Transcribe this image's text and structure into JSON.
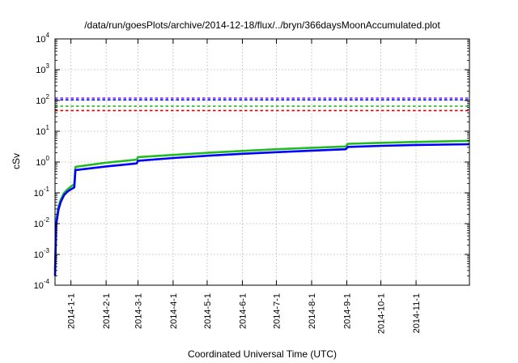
{
  "chart_data": {
    "type": "line",
    "title": "/data/run/goesPlots/archive/2014-12-18/flux/../bryn/366daysMoonAccumulated.plot",
    "xlabel": "Coordinated Universal Time (UTC)",
    "ylabel": "cSv",
    "y_scale": "log",
    "ylim": [
      0.0001,
      10000
    ],
    "xlim": [
      "2013-12-18",
      "2014-12-18"
    ],
    "grid": true,
    "y_ticks": [
      {
        "value": 0.0001,
        "base": "10",
        "exp": "-4"
      },
      {
        "value": 0.001,
        "base": "10",
        "exp": "-3"
      },
      {
        "value": 0.01,
        "base": "10",
        "exp": "-2"
      },
      {
        "value": 0.1,
        "base": "10",
        "exp": "-1"
      },
      {
        "value": 1,
        "base": "10",
        "exp": "0"
      },
      {
        "value": 10,
        "base": "10",
        "exp": "1"
      },
      {
        "value": 100,
        "base": "10",
        "exp": "2"
      },
      {
        "value": 1000,
        "base": "10",
        "exp": "3"
      },
      {
        "value": 10000,
        "base": "10",
        "exp": "4"
      }
    ],
    "x_ticks": [
      {
        "date": "2014-01-01",
        "label": "2014-1-1"
      },
      {
        "date": "2014-02-01",
        "label": "2014-2-1"
      },
      {
        "date": "2014-03-01",
        "label": "2014-3-1"
      },
      {
        "date": "2014-04-01",
        "label": "2014-4-1"
      },
      {
        "date": "2014-05-01",
        "label": "2014-5-1"
      },
      {
        "date": "2014-06-01",
        "label": "2014-6-1"
      },
      {
        "date": "2014-07-01",
        "label": "2014-7-1"
      },
      {
        "date": "2014-08-01",
        "label": "2014-8-1"
      },
      {
        "date": "2014-09-01",
        "label": "2014-9-1"
      },
      {
        "date": "2014-10-01",
        "label": "2014-10-1"
      },
      {
        "date": "2014-11-01",
        "label": "2014-11-1"
      }
    ],
    "thresholds": [
      {
        "value": 120,
        "color": "#8a2be2"
      },
      {
        "value": 105,
        "color": "#0000ff"
      },
      {
        "value": 65,
        "color": "#22bb22"
      },
      {
        "value": 47,
        "color": "#dd0000"
      }
    ],
    "series": [
      {
        "color": "#22bb22",
        "points": [
          [
            "2013-12-18",
            0.0003
          ],
          [
            "2013-12-19",
            0.012
          ],
          [
            "2013-12-21",
            0.035
          ],
          [
            "2013-12-23",
            0.06
          ],
          [
            "2013-12-26",
            0.1
          ],
          [
            "2013-12-29",
            0.13
          ],
          [
            "2014-01-01",
            0.16
          ],
          [
            "2014-01-04",
            0.19
          ],
          [
            "2014-01-05",
            0.7
          ],
          [
            "2014-02-01",
            0.95
          ],
          [
            "2014-02-28",
            1.2
          ],
          [
            "2014-03-01",
            1.45
          ],
          [
            "2014-04-01",
            1.7
          ],
          [
            "2014-05-01",
            2.0
          ],
          [
            "2014-06-01",
            2.3
          ],
          [
            "2014-07-01",
            2.6
          ],
          [
            "2014-08-01",
            2.9
          ],
          [
            "2014-08-31",
            3.2
          ],
          [
            "2014-09-02",
            3.9
          ],
          [
            "2014-10-01",
            4.2
          ],
          [
            "2014-11-01",
            4.5
          ],
          [
            "2014-12-18",
            4.9
          ]
        ]
      },
      {
        "color": "#0000ff",
        "points": [
          [
            "2013-12-18",
            0.0002
          ],
          [
            "2013-12-19",
            0.009
          ],
          [
            "2013-12-21",
            0.028
          ],
          [
            "2013-12-23",
            0.05
          ],
          [
            "2013-12-26",
            0.085
          ],
          [
            "2013-12-29",
            0.11
          ],
          [
            "2014-01-01",
            0.13
          ],
          [
            "2014-01-04",
            0.15
          ],
          [
            "2014-01-05",
            0.55
          ],
          [
            "2014-02-01",
            0.72
          ],
          [
            "2014-02-28",
            0.9
          ],
          [
            "2014-03-01",
            1.1
          ],
          [
            "2014-04-01",
            1.35
          ],
          [
            "2014-05-01",
            1.6
          ],
          [
            "2014-06-01",
            1.85
          ],
          [
            "2014-07-01",
            2.1
          ],
          [
            "2014-08-01",
            2.35
          ],
          [
            "2014-08-31",
            2.6
          ],
          [
            "2014-09-02",
            3.1
          ],
          [
            "2014-10-01",
            3.35
          ],
          [
            "2014-11-01",
            3.6
          ],
          [
            "2014-12-18",
            3.8
          ]
        ]
      }
    ]
  }
}
